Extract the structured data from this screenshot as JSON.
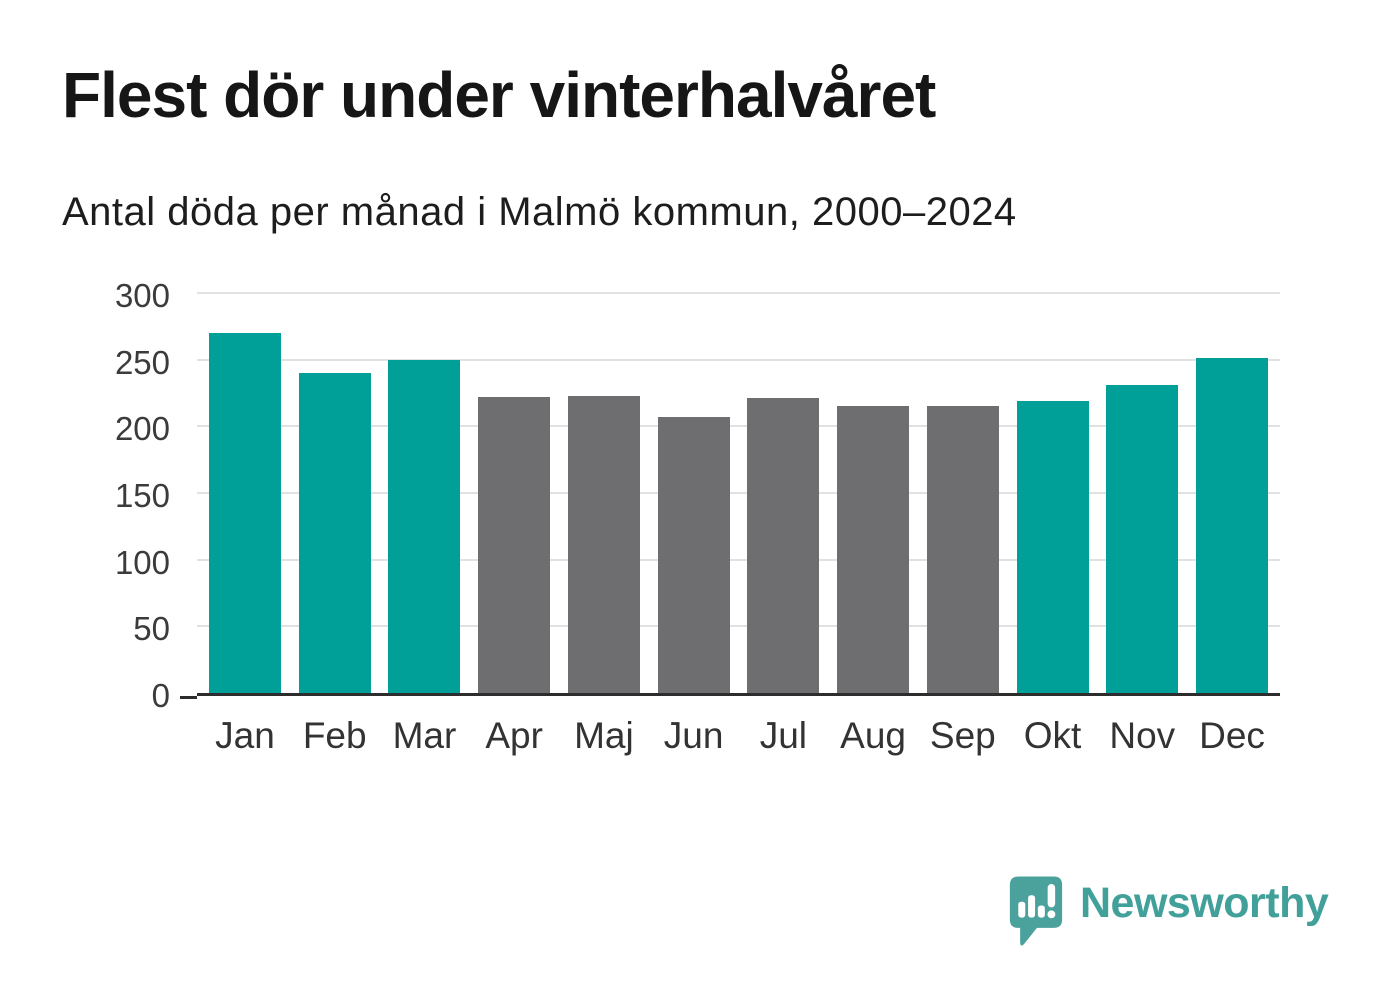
{
  "chart_data": {
    "type": "bar",
    "title": "Flest dör under vinterhalvåret",
    "subtitle": "Antal döda per månad i Malmö kommun, 2000–2024",
    "categories": [
      "Jan",
      "Feb",
      "Mar",
      "Apr",
      "Maj",
      "Jun",
      "Jul",
      "Aug",
      "Sep",
      "Okt",
      "Nov",
      "Dec"
    ],
    "values": [
      270,
      240,
      250,
      222,
      223,
      207,
      221,
      215,
      215,
      219,
      231,
      251
    ],
    "bar_color_roles": [
      "winter",
      "winter",
      "winter",
      "summer",
      "summer",
      "summer",
      "summer",
      "summer",
      "summer",
      "winter",
      "winter",
      "winter"
    ],
    "colors": {
      "winter": "#00a098",
      "summer": "#6e6e71"
    },
    "xlabel": "",
    "ylabel": "",
    "ylim": [
      0,
      300
    ],
    "yticks": [
      0,
      50,
      100,
      150,
      200,
      250,
      300
    ],
    "grid": true,
    "legend": false
  },
  "branding": {
    "name": "Newsworthy",
    "color": "#41a09a",
    "logo_icon": "speech-bubble-with-bar-chart-and-exclamation"
  }
}
